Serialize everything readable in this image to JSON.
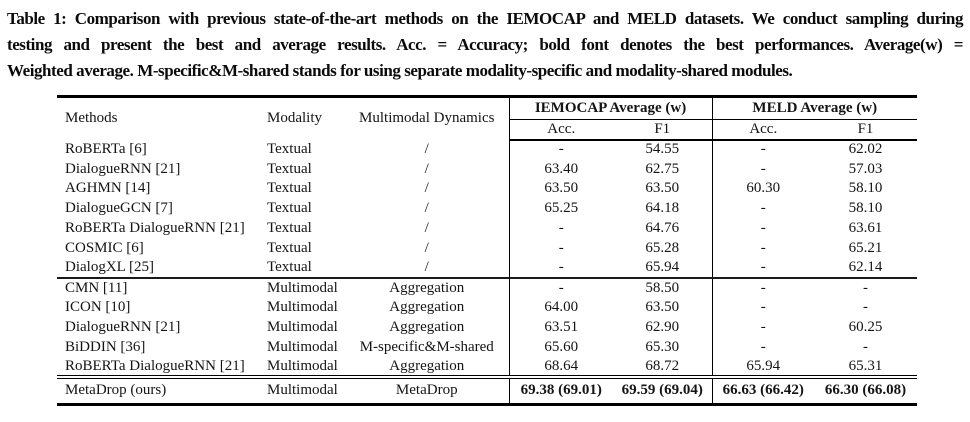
{
  "caption": {
    "lines": [
      "Table 1: Comparison with previous state-of-the-art methods on the IEMOCAP and MELD datasets. We conduct sampling during",
      "testing and present the best and average results. Acc. = Accuracy; bold font denotes the best performances. Average(w) =",
      "Weighted average. M-specific&M-shared stands for using separate modality-specific and modality-shared modules."
    ]
  },
  "table": {
    "headers": {
      "methods": "Methods",
      "modality": "Modality",
      "dynamics": "Multimodal Dynamics",
      "iemocap_group": "IEMOCAP Average (w)",
      "meld_group": "MELD Average (w)",
      "iemocap_acc": "Acc.",
      "iemocap_f1": "F1",
      "meld_acc": "Acc.",
      "meld_f1": "F1"
    },
    "textual_rows": [
      {
        "method": "RoBERTa [6]",
        "modality": "Textual",
        "dynamics": "/",
        "iemocap_acc": "-",
        "iemocap_f1": "54.55",
        "meld_acc": "-",
        "meld_f1": "62.02"
      },
      {
        "method": "DialogueRNN [21]",
        "modality": "Textual",
        "dynamics": "/",
        "iemocap_acc": "63.40",
        "iemocap_f1": "62.75",
        "meld_acc": "-",
        "meld_f1": "57.03"
      },
      {
        "method": "AGHMN [14]",
        "modality": "Textual",
        "dynamics": "/",
        "iemocap_acc": "63.50",
        "iemocap_f1": "63.50",
        "meld_acc": "60.30",
        "meld_f1": "58.10"
      },
      {
        "method": "DialogueGCN [7]",
        "modality": "Textual",
        "dynamics": "/",
        "iemocap_acc": "65.25",
        "iemocap_f1": "64.18",
        "meld_acc": "-",
        "meld_f1": "58.10"
      },
      {
        "method": "RoBERTa DialogueRNN [21]",
        "modality": "Textual",
        "dynamics": "/",
        "iemocap_acc": "-",
        "iemocap_f1": "64.76",
        "meld_acc": "-",
        "meld_f1": "63.61"
      },
      {
        "method": "COSMIC [6]",
        "modality": "Textual",
        "dynamics": "/",
        "iemocap_acc": "-",
        "iemocap_f1": "65.28",
        "meld_acc": "-",
        "meld_f1": "65.21"
      },
      {
        "method": "DialogXL [25]",
        "modality": "Textual",
        "dynamics": "/",
        "iemocap_acc": "-",
        "iemocap_f1": "65.94",
        "meld_acc": "-",
        "meld_f1": "62.14"
      }
    ],
    "multimodal_rows": [
      {
        "method": "CMN [11]",
        "modality": "Multimodal",
        "dynamics": "Aggregation",
        "iemocap_acc": "-",
        "iemocap_f1": "58.50",
        "meld_acc": "-",
        "meld_f1": "-"
      },
      {
        "method": "ICON [10]",
        "modality": "Multimodal",
        "dynamics": "Aggregation",
        "iemocap_acc": "64.00",
        "iemocap_f1": "63.50",
        "meld_acc": "-",
        "meld_f1": "-"
      },
      {
        "method": "DialogueRNN [21]",
        "modality": "Multimodal",
        "dynamics": "Aggregation",
        "iemocap_acc": "63.51",
        "iemocap_f1": "62.90",
        "meld_acc": "-",
        "meld_f1": "60.25"
      },
      {
        "method": "BiDDIN [36]",
        "modality": "Multimodal",
        "dynamics": "M-specific&M-shared",
        "iemocap_acc": "65.60",
        "iemocap_f1": "65.30",
        "meld_acc": "-",
        "meld_f1": "-"
      },
      {
        "method": "RoBERTa DialogueRNN [21]",
        "modality": "Multimodal",
        "dynamics": "Aggregation",
        "iemocap_acc": "68.64",
        "iemocap_f1": "68.72",
        "meld_acc": "65.94",
        "meld_f1": "65.31"
      }
    ],
    "final_row": {
      "method": "MetaDrop (ours)",
      "modality": "Multimodal",
      "dynamics": "MetaDrop",
      "iemocap_acc": "69.38 (69.01)",
      "iemocap_f1": "69.59 (69.04)",
      "meld_acc": "66.63 (66.42)",
      "meld_f1": "66.30 (66.08)"
    }
  }
}
